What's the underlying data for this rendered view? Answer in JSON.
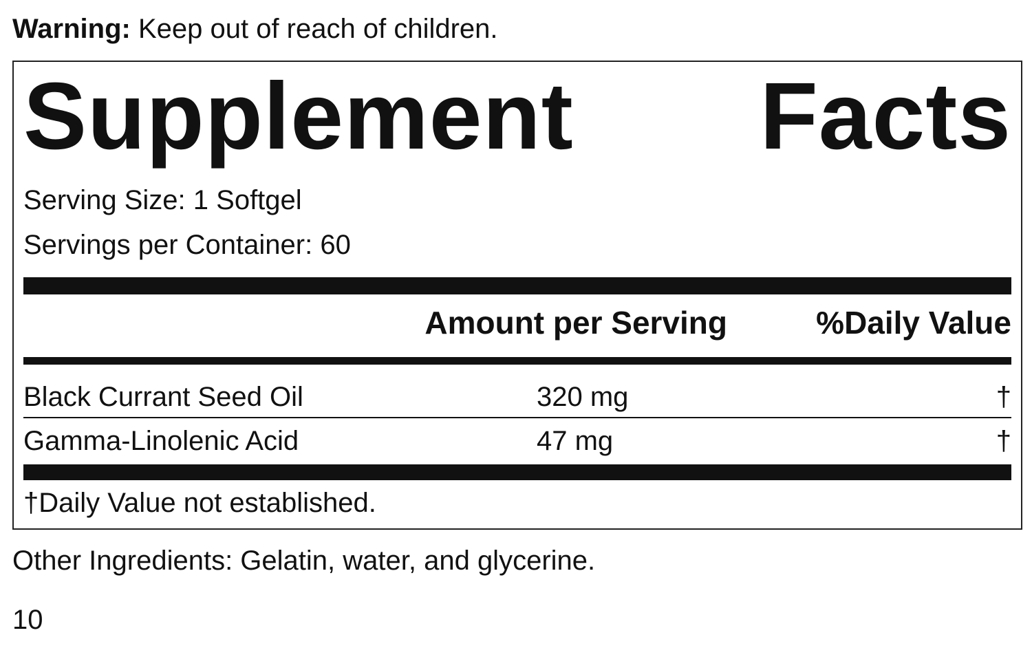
{
  "warning": {
    "label": "Warning:",
    "text": "Keep out of reach of children."
  },
  "panel": {
    "title": "Supplement Facts",
    "serving_size": "Serving Size: 1 Softgel",
    "servings_per_container": "Servings per Container: 60",
    "headers": [
      "Amount per Serving",
      "%Daily Value"
    ],
    "rows": [
      [
        "Black Currant Seed Oil",
        "320 mg",
        "†"
      ],
      [
        "Gamma-Linolenic Acid",
        "47 mg",
        "†"
      ]
    ],
    "footnote": "†Daily Value not established."
  },
  "other_ingredients": "Other Ingredients: Gelatin, water, and glycerine.",
  "page_number": "10"
}
